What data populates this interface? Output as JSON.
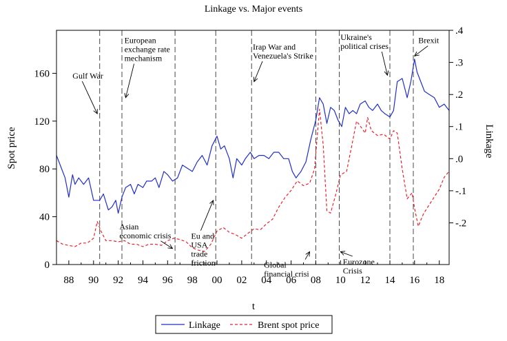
{
  "chart_data": {
    "type": "line",
    "title": "Linkage vs. Major events",
    "xlabel": "t",
    "ylabel_left": "Spot price",
    "ylabel_right": "Linkage",
    "xlim": [
      1987.0,
      2018.8
    ],
    "ylim_left": [
      0,
      196
    ],
    "ylim_right": [
      -0.33,
      0.4
    ],
    "x_ticks": [
      {
        "value": 1988,
        "label": "88"
      },
      {
        "value": 1990,
        "label": "90"
      },
      {
        "value": 1992,
        "label": "92"
      },
      {
        "value": 1994,
        "label": "94"
      },
      {
        "value": 1996,
        "label": "96"
      },
      {
        "value": 1998,
        "label": "98"
      },
      {
        "value": 2000,
        "label": "00"
      },
      {
        "value": 2002,
        "label": "02"
      },
      {
        "value": 2004,
        "label": "04"
      },
      {
        "value": 2006,
        "label": "06"
      },
      {
        "value": 2008,
        "label": "08"
      },
      {
        "value": 2010,
        "label": "10"
      },
      {
        "value": 2012,
        "label": "12"
      },
      {
        "value": 2014,
        "label": "14"
      },
      {
        "value": 2016,
        "label": "16"
      },
      {
        "value": 2018,
        "label": "18"
      }
    ],
    "y_ticks_left": [
      {
        "value": 0,
        "label": "0"
      },
      {
        "value": 40,
        "label": "40"
      },
      {
        "value": 80,
        "label": "80"
      },
      {
        "value": 120,
        "label": "120"
      },
      {
        "value": 160,
        "label": "160"
      }
    ],
    "y_ticks_right": [
      {
        "value": -0.2,
        "label": "-.2"
      },
      {
        "value": -0.1,
        "label": "-.1"
      },
      {
        "value": 0.0,
        "label": ".0"
      },
      {
        "value": 0.1,
        "label": ".1"
      },
      {
        "value": 0.2,
        "label": ".2"
      },
      {
        "value": 0.3,
        "label": ".3"
      },
      {
        "value": 0.4,
        "label": ".4"
      }
    ],
    "series": [
      {
        "name": "Linkage",
        "axis": "right",
        "color": "#1f2ec8",
        "dash": "solid",
        "x": [
          1987.0,
          1987.3,
          1987.7,
          1988.0,
          1988.3,
          1988.5,
          1988.8,
          1989.2,
          1989.6,
          1990.0,
          1990.2,
          1990.5,
          1990.8,
          1991.2,
          1991.5,
          1991.8,
          1992.0,
          1992.3,
          1992.6,
          1993.0,
          1993.3,
          1993.6,
          1994.0,
          1994.3,
          1994.7,
          1995.0,
          1995.3,
          1995.7,
          1996.0,
          1996.4,
          1996.8,
          1997.2,
          1997.6,
          1998.0,
          1998.4,
          1998.8,
          1999.2,
          1999.6,
          2000.0,
          2000.3,
          2000.6,
          2001.0,
          2001.3,
          2001.6,
          2002.0,
          2002.3,
          2002.7,
          2003.0,
          2003.4,
          2003.8,
          2004.2,
          2004.6,
          2005.0,
          2005.4,
          2005.8,
          2006.1,
          2006.4,
          2006.8,
          2007.2,
          2007.6,
          2008.0,
          2008.3,
          2008.6,
          2008.9,
          2009.2,
          2009.5,
          2009.8,
          2010.1,
          2010.4,
          2010.7,
          2011.0,
          2011.3,
          2011.6,
          2012.0,
          2012.3,
          2012.6,
          2013.0,
          2013.3,
          2013.6,
          2014.0,
          2014.3,
          2014.6,
          2015.0,
          2015.4,
          2015.7,
          2016.0,
          2016.2,
          2016.5,
          2016.8,
          2017.2,
          2017.6,
          2018.0,
          2018.4,
          2018.8
        ],
        "y": [
          0.01,
          -0.02,
          -0.06,
          -0.12,
          -0.05,
          -0.08,
          -0.06,
          -0.08,
          -0.06,
          -0.13,
          -0.13,
          -0.13,
          -0.11,
          -0.16,
          -0.15,
          -0.13,
          -0.17,
          -0.12,
          -0.09,
          -0.08,
          -0.11,
          -0.08,
          -0.09,
          -0.07,
          -0.07,
          -0.06,
          -0.09,
          -0.04,
          -0.05,
          -0.07,
          -0.06,
          -0.02,
          -0.03,
          -0.04,
          -0.01,
          0.01,
          -0.02,
          0.04,
          0.07,
          0.03,
          0.04,
          0.0,
          -0.06,
          0.0,
          -0.02,
          0.0,
          0.02,
          0.0,
          0.01,
          0.01,
          0.0,
          0.02,
          0.02,
          0.0,
          0.0,
          -0.04,
          -0.06,
          -0.04,
          -0.01,
          0.06,
          0.12,
          0.19,
          0.17,
          0.11,
          0.16,
          0.15,
          0.12,
          0.1,
          0.16,
          0.14,
          0.15,
          0.14,
          0.17,
          0.18,
          0.16,
          0.15,
          0.17,
          0.15,
          0.14,
          0.13,
          0.15,
          0.24,
          0.25,
          0.19,
          0.24,
          0.31,
          0.27,
          0.24,
          0.21,
          0.2,
          0.19,
          0.16,
          0.17,
          0.15
        ]
      },
      {
        "name": "Brent spot price",
        "axis": "left",
        "color": "#e8202a",
        "dash": "dashed",
        "x": [
          1987.0,
          1987.5,
          1988.0,
          1988.5,
          1989.0,
          1989.5,
          1990.0,
          1990.3,
          1990.6,
          1991.0,
          1991.5,
          1992.0,
          1992.5,
          1993.0,
          1993.5,
          1994.0,
          1994.5,
          1995.0,
          1995.5,
          1996.0,
          1996.5,
          1997.0,
          1997.5,
          1998.0,
          1998.5,
          1999.0,
          1999.5,
          2000.0,
          2000.5,
          2001.0,
          2001.5,
          2002.0,
          2002.5,
          2003.0,
          2003.5,
          2004.0,
          2004.5,
          2005.0,
          2005.5,
          2006.0,
          2006.5,
          2007.0,
          2007.5,
          2007.9,
          2008.3,
          2008.6,
          2008.9,
          2009.2,
          2009.6,
          2010.0,
          2010.5,
          2011.0,
          2011.3,
          2011.6,
          2012.0,
          2012.2,
          2012.5,
          2013.0,
          2013.5,
          2014.0,
          2014.3,
          2014.6,
          2015.0,
          2015.4,
          2015.8,
          2016.0,
          2016.3,
          2016.7,
          2017.0,
          2017.5,
          2018.0,
          2018.4,
          2018.8
        ],
        "y": [
          20,
          17,
          16,
          15,
          18,
          18,
          22,
          36,
          28,
          20,
          20,
          19,
          20,
          17,
          17,
          15,
          17,
          17,
          16,
          20,
          22,
          21,
          19,
          14,
          12,
          11,
          17,
          28,
          31,
          27,
          25,
          22,
          26,
          30,
          29,
          34,
          38,
          48,
          56,
          62,
          70,
          66,
          68,
          80,
          130,
          100,
          45,
          43,
          58,
          75,
          78,
          104,
          120,
          116,
          110,
          123,
          112,
          108,
          109,
          105,
          112,
          110,
          80,
          55,
          60,
          47,
          32,
          42,
          47,
          55,
          63,
          73,
          78
        ]
      }
    ],
    "events": [
      {
        "x": 1990.5,
        "label_lines": [
          "Gulf War"
        ],
        "text_x": 1988.3,
        "text_y": 0.25,
        "arrow_to": [
          1990.3,
          0.14
        ]
      },
      {
        "x": 1992.3,
        "label_lines": [
          "European",
          "exchange rate",
          "mechanism"
        ],
        "text_x": 1992.5,
        "text_y": 0.36,
        "arrow_to": [
          1992.6,
          0.19
        ]
      },
      {
        "x": 1996.6,
        "label_lines": [
          "Asian",
          "economic crisis"
        ],
        "text_x": 1992.1,
        "text_y": -0.22,
        "arrow_to": [
          1996.4,
          -0.28
        ]
      },
      {
        "x": 1999.9,
        "label_lines": [
          "Eu and",
          "USA",
          "trade",
          "friction"
        ],
        "text_x": 1997.9,
        "text_y": -0.25,
        "arrow_to": [
          1999.7,
          -0.13
        ]
      },
      {
        "x": 2002.8,
        "label_lines": [
          "Irap War and",
          "Venezuela's Strike"
        ],
        "text_x": 2002.9,
        "text_y": 0.34,
        "arrow_to": [
          2003.0,
          0.24
        ]
      },
      {
        "x": 2008.0,
        "label_lines": [
          "Global",
          "financial crisi"
        ],
        "text_x": 2003.8,
        "text_y": -0.34,
        "arrow_to": [
          2007.5,
          -0.29
        ]
      },
      {
        "x": 2009.9,
        "label_lines": [
          "Eurozone",
          "Crisis"
        ],
        "text_x": 2010.2,
        "text_y": -0.33,
        "arrow_to": [
          2010.0,
          -0.29
        ]
      },
      {
        "x": 2014.0,
        "label_lines": [
          "Ukraine's",
          "political crises"
        ],
        "text_x": 2010.0,
        "text_y": 0.37,
        "arrow_to": [
          2013.8,
          0.26
        ]
      },
      {
        "x": 2015.9,
        "label_lines": [
          "Brexit"
        ],
        "text_x": 2016.3,
        "text_y": 0.36,
        "arrow_to": [
          2016.0,
          0.32
        ]
      }
    ],
    "legend": {
      "position": "bottom-center",
      "entries": [
        "Linkage",
        "Brent spot price"
      ]
    }
  }
}
